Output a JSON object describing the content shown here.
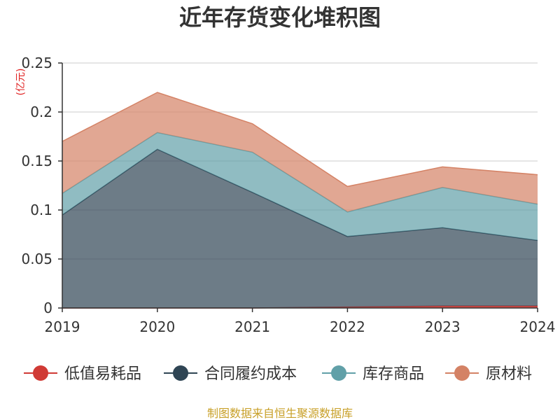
{
  "chart_data": {
    "type": "area",
    "stacked": true,
    "title": "近年存货变化堆积图",
    "unit_label": "(亿元)",
    "x": [
      "2019",
      "2020",
      "2021",
      "2022",
      "2023",
      "2024"
    ],
    "ylim": [
      0,
      0.25
    ],
    "yticks": [
      "0",
      "0.05",
      "0.1",
      "0.15",
      "0.2",
      "0.25"
    ],
    "ytick_values": [
      0,
      0.05,
      0.1,
      0.15,
      0.2,
      0.25
    ],
    "grid": true,
    "legend_position": "bottom",
    "series": [
      {
        "name": "低值易耗品",
        "color": "#d03a35",
        "values": [
          0.0,
          0.0,
          0.0,
          0.001,
          0.002,
          0.002
        ]
      },
      {
        "name": "合同履约成本",
        "color": "#2f4554",
        "values": [
          0.095,
          0.162,
          0.118,
          0.072,
          0.08,
          0.067
        ]
      },
      {
        "name": "库存商品",
        "color": "#61a0a8",
        "values": [
          0.022,
          0.017,
          0.041,
          0.025,
          0.041,
          0.037
        ]
      },
      {
        "name": "原材料",
        "color": "#d48265",
        "values": [
          0.053,
          0.041,
          0.029,
          0.026,
          0.021,
          0.03
        ]
      }
    ]
  },
  "source_text": "制图数据来自恒生聚源数据库"
}
